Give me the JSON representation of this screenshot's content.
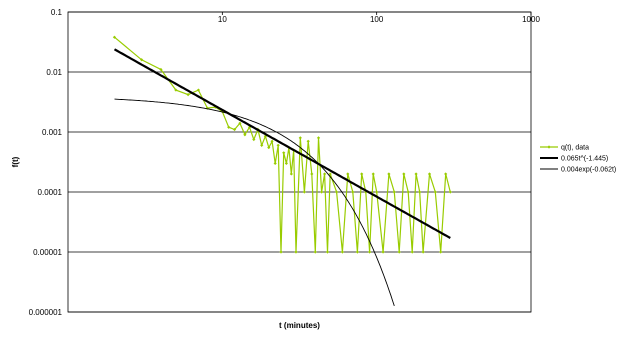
{
  "chart_data": {
    "type": "scatter",
    "xlabel": "t (minutes)",
    "ylabel": "f(t)",
    "x_scale": "log",
    "y_scale": "log",
    "xlim": [
      1,
      1000
    ],
    "ylim": [
      1e-06,
      0.1
    ],
    "x_tick_labels": [
      "10",
      "100",
      "1000"
    ],
    "y_tick_labels": [
      "0.1",
      "0.01",
      "0.001",
      "0.0001",
      "0.00001",
      "0.000001"
    ],
    "grid": "horizontal major gridlines",
    "legend_position": "right",
    "series": [
      {
        "name": "q(t), data",
        "color": "#99cc00",
        "marker": "diamond",
        "x": [
          2,
          3,
          4,
          5,
          6,
          7,
          8,
          9,
          10,
          11,
          12,
          13,
          14,
          15,
          16,
          17,
          18,
          19,
          20,
          21,
          22,
          23,
          24,
          25,
          26,
          27,
          28,
          29,
          30,
          32,
          34,
          36,
          38,
          40,
          42,
          44,
          46,
          48,
          50,
          55,
          60,
          65,
          70,
          75,
          80,
          85,
          90,
          95,
          100,
          110,
          120,
          130,
          140,
          150,
          160,
          170,
          180,
          190,
          200,
          220,
          240,
          260,
          280,
          300
        ],
        "y": [
          0.038,
          0.016,
          0.011,
          0.005,
          0.0042,
          0.005,
          0.0025,
          0.0026,
          0.0022,
          0.0012,
          0.0011,
          0.0014,
          0.0009,
          0.0012,
          0.00075,
          0.0011,
          0.0006,
          0.00085,
          0.00055,
          0.0007,
          0.0003,
          0.0006,
          1e-05,
          0.00045,
          0.0003,
          0.00055,
          0.0002,
          0.0005,
          1e-05,
          0.0008,
          0.0001,
          0.0007,
          0.0002,
          1e-05,
          0.0008,
          0.0001,
          0.0002,
          1e-05,
          0.0002,
          0.0001,
          1e-05,
          0.0002,
          0.0001,
          1e-05,
          0.0002,
          0.0001,
          1e-05,
          0.0002,
          0.0001,
          1e-05,
          0.0002,
          0.0001,
          1e-05,
          0.0002,
          0.0001,
          1e-05,
          0.0002,
          0.0001,
          1e-05,
          0.0002,
          0.0001,
          1e-05,
          0.0002,
          0.0001
        ]
      },
      {
        "name": "0.065t^(-1.445)",
        "color": "#000000",
        "line_weight": "thick",
        "function": "power",
        "a": 0.065,
        "b": -1.445,
        "x_range": [
          2,
          300
        ]
      },
      {
        "name": "0.004exp(-0.062t)",
        "color": "#000000",
        "line_weight": "thin",
        "function": "exponential",
        "a": 0.004,
        "b": -0.062,
        "x_range": [
          2,
          130
        ]
      }
    ]
  }
}
